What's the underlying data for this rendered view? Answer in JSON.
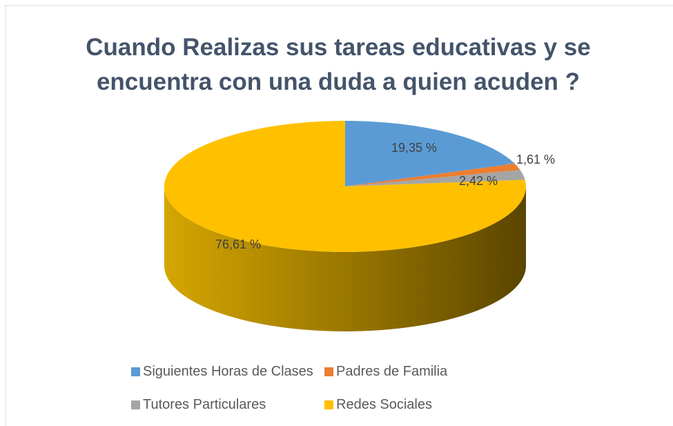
{
  "chart_data": {
    "type": "pie",
    "title": "Cuando Realizas sus tareas educativas y se encuentra con una duda a quien acuden ?",
    "categories": [
      "Siguientes Horas de Clases",
      "Padres de Familia",
      "Tutores Particulares",
      "Redes Sociales"
    ],
    "values": [
      19.35,
      1.61,
      2.42,
      76.61
    ],
    "value_labels": [
      "19,35 %",
      "1,61 %",
      "2,42 %",
      "76,61 %"
    ],
    "colors": [
      "#5b9bd5",
      "#ed7d31",
      "#a5a5a5",
      "#ffc000"
    ],
    "legend": "bottom"
  }
}
